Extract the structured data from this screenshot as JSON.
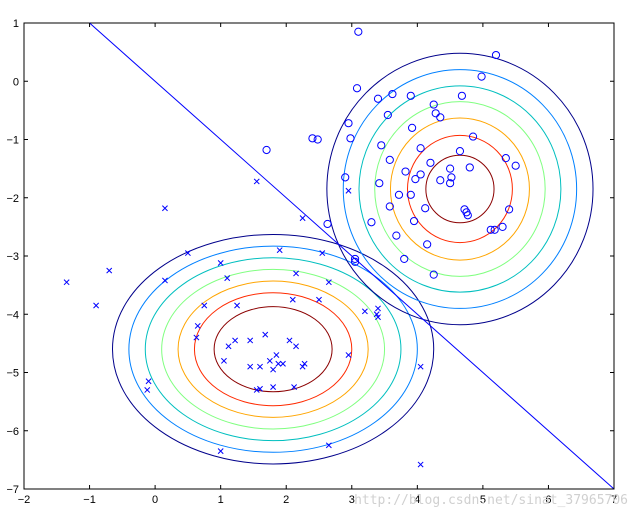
{
  "chart_data": {
    "type": "scatter",
    "title": "",
    "xlabel": "",
    "ylabel": "",
    "xlim": [
      -2,
      7
    ],
    "ylim": [
      -7,
      1
    ],
    "xticks": [
      -2,
      -1,
      0,
      1,
      2,
      3,
      4,
      5,
      6,
      7
    ],
    "yticks": [
      1,
      0,
      -1,
      -2,
      -3,
      -4,
      -5,
      -6,
      -7
    ],
    "grid": false,
    "legend": "none",
    "series": [
      {
        "marker": "x",
        "color": "#0000ff",
        "points": [
          [
            -1.35,
            -3.45
          ],
          [
            -0.9,
            -3.85
          ],
          [
            -0.7,
            -3.25
          ],
          [
            -0.1,
            -5.15
          ],
          [
            -0.12,
            -5.3
          ],
          [
            0.15,
            -2.18
          ],
          [
            0.15,
            -3.42
          ],
          [
            0.5,
            -2.95
          ],
          [
            0.65,
            -4.2
          ],
          [
            0.63,
            -4.4
          ],
          [
            0.75,
            -3.85
          ],
          [
            1.0,
            -3.12
          ],
          [
            1.0,
            -6.35
          ],
          [
            1.05,
            -4.8
          ],
          [
            1.1,
            -3.38
          ],
          [
            1.12,
            -4.55
          ],
          [
            1.22,
            -4.45
          ],
          [
            1.25,
            -3.85
          ],
          [
            1.45,
            -4.45
          ],
          [
            1.45,
            -4.9
          ],
          [
            1.55,
            -1.72
          ],
          [
            1.55,
            -5.3
          ],
          [
            1.6,
            -5.28
          ],
          [
            1.6,
            -4.9
          ],
          [
            1.68,
            -4.35
          ],
          [
            1.75,
            -4.8
          ],
          [
            1.8,
            -4.95
          ],
          [
            1.8,
            -5.25
          ],
          [
            1.85,
            -4.7
          ],
          [
            1.88,
            -4.85
          ],
          [
            1.9,
            -2.9
          ],
          [
            1.95,
            -4.85
          ],
          [
            2.05,
            -4.45
          ],
          [
            2.1,
            -3.75
          ],
          [
            2.12,
            -5.25
          ],
          [
            2.15,
            -4.55
          ],
          [
            2.15,
            -3.3
          ],
          [
            2.25,
            -2.35
          ],
          [
            2.25,
            -4.9
          ],
          [
            2.28,
            -4.85
          ],
          [
            2.5,
            -3.75
          ],
          [
            2.55,
            -2.95
          ],
          [
            2.65,
            -3.45
          ],
          [
            2.65,
            -6.25
          ],
          [
            2.95,
            -4.7
          ],
          [
            3.2,
            -3.95
          ],
          [
            3.38,
            -4.0
          ],
          [
            3.4,
            -3.9
          ],
          [
            3.4,
            -4.05
          ],
          [
            4.05,
            -4.9
          ],
          [
            4.05,
            -6.58
          ],
          [
            2.95,
            -1.88
          ]
        ]
      },
      {
        "marker": "o",
        "color": "#0000ff",
        "points": [
          [
            1.7,
            -1.18
          ],
          [
            2.4,
            -0.98
          ],
          [
            2.48,
            -1.0
          ],
          [
            2.63,
            -2.45
          ],
          [
            2.9,
            -1.65
          ],
          [
            2.95,
            -0.72
          ],
          [
            2.98,
            -0.98
          ],
          [
            3.05,
            -3.05
          ],
          [
            3.05,
            -3.1
          ],
          [
            3.08,
            -0.12
          ],
          [
            3.1,
            0.85
          ],
          [
            3.3,
            -2.42
          ],
          [
            3.4,
            -0.3
          ],
          [
            3.42,
            -1.75
          ],
          [
            3.45,
            -1.1
          ],
          [
            3.55,
            -0.58
          ],
          [
            3.58,
            -1.35
          ],
          [
            3.58,
            -2.15
          ],
          [
            3.62,
            -0.22
          ],
          [
            3.68,
            -2.65
          ],
          [
            3.72,
            -1.95
          ],
          [
            3.8,
            -3.05
          ],
          [
            3.82,
            -1.55
          ],
          [
            3.9,
            -0.25
          ],
          [
            3.9,
            -1.95
          ],
          [
            3.92,
            -0.8
          ],
          [
            3.95,
            -2.4
          ],
          [
            3.97,
            -1.68
          ],
          [
            4.05,
            -1.15
          ],
          [
            4.05,
            -1.6
          ],
          [
            4.12,
            -2.18
          ],
          [
            4.15,
            -2.8
          ],
          [
            4.2,
            -1.4
          ],
          [
            4.25,
            -0.4
          ],
          [
            4.25,
            -3.32
          ],
          [
            4.28,
            -0.55
          ],
          [
            4.35,
            -0.62
          ],
          [
            4.35,
            -1.7
          ],
          [
            4.5,
            -1.5
          ],
          [
            4.5,
            -1.75
          ],
          [
            4.52,
            -1.65
          ],
          [
            4.65,
            -1.2
          ],
          [
            4.68,
            -0.25
          ],
          [
            4.72,
            -2.2
          ],
          [
            4.75,
            -2.25
          ],
          [
            4.8,
            -1.48
          ],
          [
            4.85,
            -0.95
          ],
          [
            4.98,
            0.08
          ],
          [
            5.12,
            -2.55
          ],
          [
            5.18,
            -2.55
          ],
          [
            5.2,
            0.45
          ],
          [
            5.35,
            -1.32
          ],
          [
            5.4,
            -2.2
          ],
          [
            5.5,
            -1.45
          ],
          [
            5.3,
            -2.5
          ],
          [
            4.77,
            -2.3
          ]
        ]
      }
    ],
    "decision_boundary": {
      "from": [
        -1,
        1
      ],
      "to": [
        7,
        -7
      ],
      "color": "#0000ff"
    },
    "contours": [
      {
        "center": [
          1.8,
          -4.6
        ],
        "rx": [
          0.9,
          1.2,
          1.45,
          1.7,
          1.95,
          2.2,
          2.45
        ],
        "ry": [
          0.73,
          0.97,
          1.17,
          1.37,
          1.57,
          1.77,
          1.97
        ]
      },
      {
        "center": [
          4.65,
          -1.85
        ],
        "rx": [
          0.52,
          0.8,
          1.06,
          1.3,
          1.54,
          1.78,
          2.03
        ],
        "ry": [
          0.58,
          0.92,
          1.22,
          1.5,
          1.77,
          2.05,
          2.33
        ]
      }
    ],
    "contour_colors": [
      "#8b0000",
      "#ff2a00",
      "#ffa500",
      "#80ff80",
      "#00bfbf",
      "#0080ff",
      "#00008b"
    ]
  },
  "watermark": "http://blog.csdn.net/sinat_37965706"
}
